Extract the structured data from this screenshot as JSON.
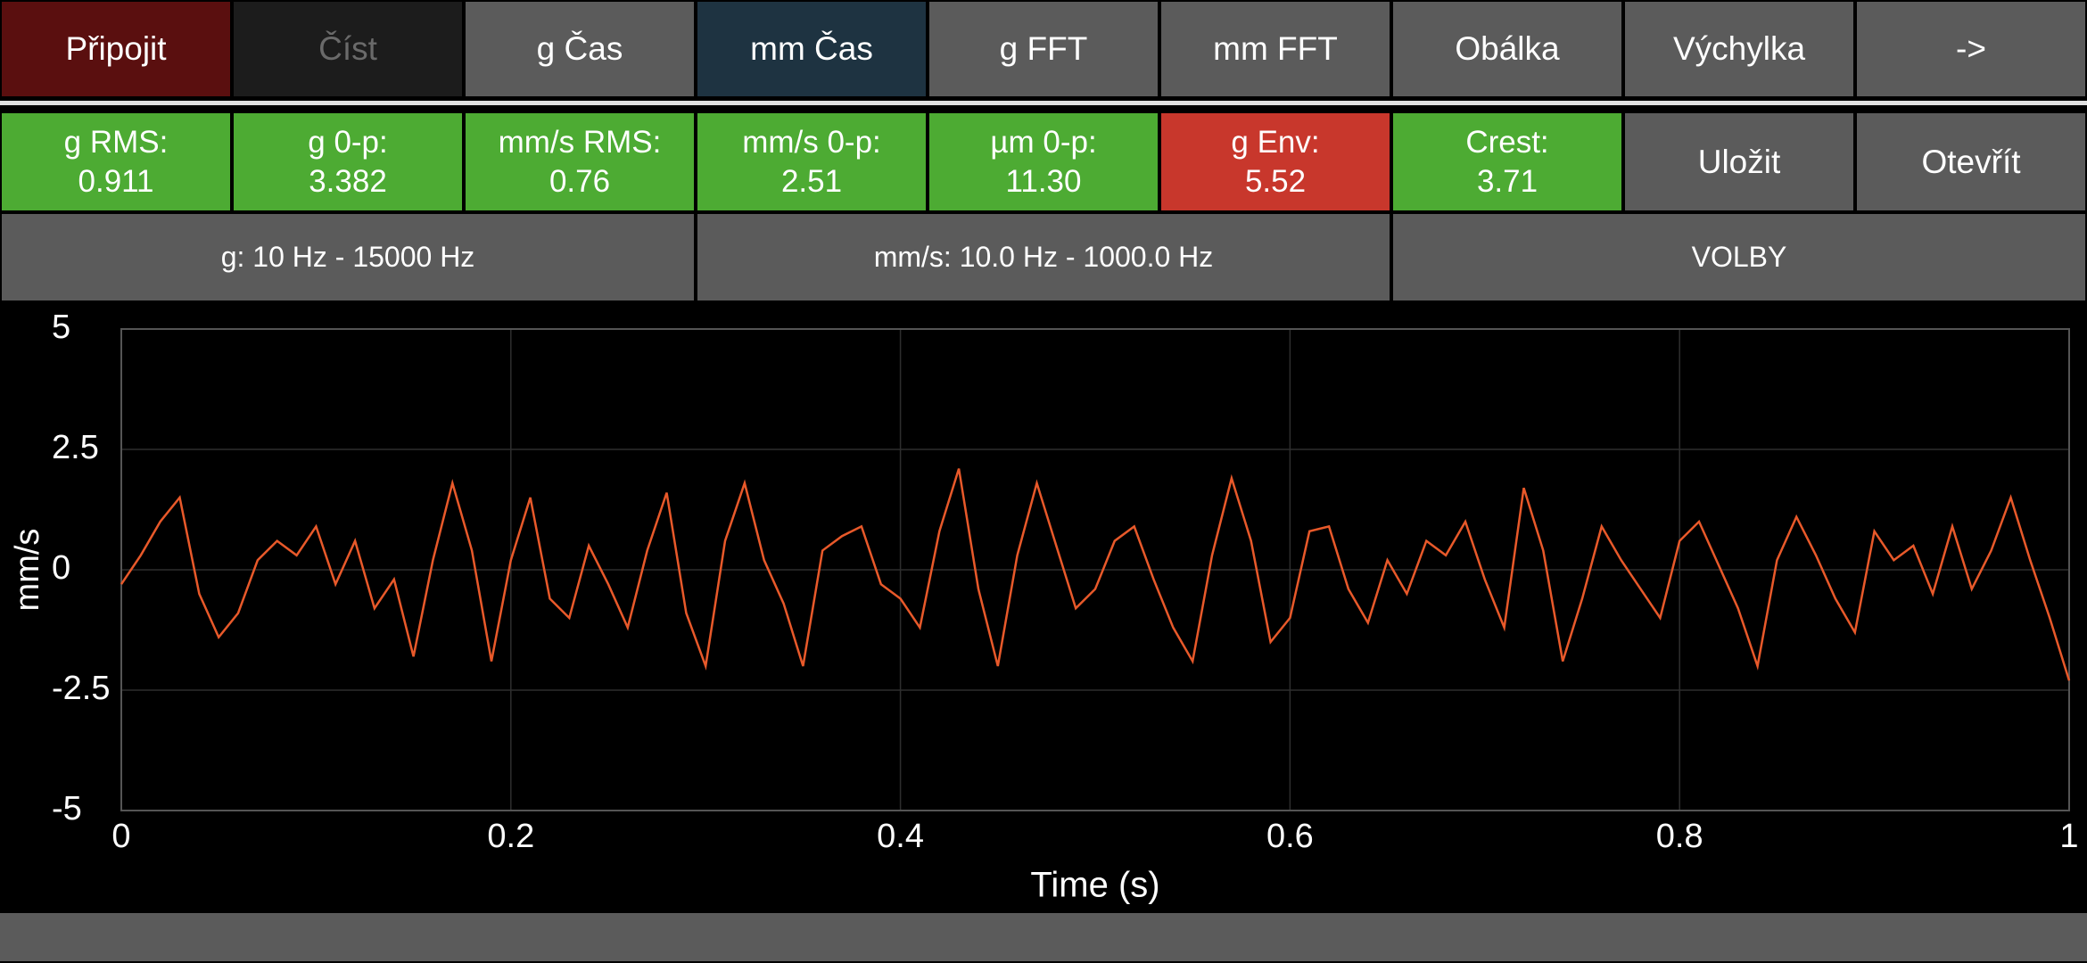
{
  "toolbar": [
    "Připojit",
    "Číst",
    "g Čas",
    "mm Čas",
    "g FFT",
    "mm FFT",
    "Obálka",
    "Výchylka",
    "->"
  ],
  "metrics": [
    {
      "label": "g RMS:",
      "value": "0.911"
    },
    {
      "label": "g 0-p:",
      "value": "3.382"
    },
    {
      "label": "mm/s RMS:",
      "value": "0.76"
    },
    {
      "label": "mm/s 0-p:",
      "value": "2.51"
    },
    {
      "label": "µm 0-p:",
      "value": "11.30"
    },
    {
      "label": "g Env:",
      "value": "5.52"
    },
    {
      "label": "Crest:",
      "value": "3.71"
    }
  ],
  "actions": [
    "Uložit",
    "Otevřít"
  ],
  "ranges": [
    "g: 10 Hz - 15000 Hz",
    "mm/s: 10.0 Hz - 1000.0 Hz",
    "VOLBY"
  ],
  "chart_data": {
    "type": "line",
    "x_label": "Time (s)",
    "y_label": "mm/s",
    "color": "#e8592a",
    "grid": true,
    "xlim": [
      0,
      1
    ],
    "ylim": [
      -5,
      5
    ],
    "xticks": [
      0,
      0.2,
      0.4,
      0.6,
      0.8,
      1
    ],
    "yticks": [
      5,
      2.5,
      0,
      -2.5,
      -5
    ],
    "x": [
      0,
      0.01,
      0.02,
      0.03,
      0.04,
      0.05,
      0.06,
      0.07,
      0.08,
      0.09,
      0.1,
      0.11,
      0.12,
      0.13,
      0.14,
      0.15,
      0.16,
      0.17,
      0.18,
      0.19,
      0.2,
      0.21,
      0.22,
      0.23,
      0.24,
      0.25,
      0.26,
      0.27,
      0.28,
      0.29,
      0.3,
      0.31,
      0.32,
      0.33,
      0.34,
      0.35,
      0.36,
      0.37,
      0.38,
      0.39,
      0.4,
      0.41,
      0.42,
      0.43,
      0.44,
      0.45,
      0.46,
      0.47,
      0.48,
      0.49,
      0.5,
      0.51,
      0.52,
      0.53,
      0.54,
      0.55,
      0.56,
      0.57,
      0.58,
      0.59,
      0.6,
      0.61,
      0.62,
      0.63,
      0.64,
      0.65,
      0.66,
      0.67,
      0.68,
      0.69,
      0.7,
      0.71,
      0.72,
      0.73,
      0.74,
      0.75,
      0.76,
      0.77,
      0.78,
      0.79,
      0.8,
      0.81,
      0.82,
      0.83,
      0.84,
      0.85,
      0.86,
      0.87,
      0.88,
      0.89,
      0.9,
      0.91,
      0.92,
      0.93,
      0.94,
      0.95,
      0.96,
      0.97,
      0.98,
      0.99,
      1
    ],
    "values": [
      -0.3,
      0.3,
      1.0,
      1.5,
      -0.5,
      -1.4,
      -0.9,
      0.2,
      0.6,
      0.3,
      0.9,
      -0.3,
      0.6,
      -0.8,
      -0.2,
      -1.8,
      0.2,
      1.8,
      0.4,
      -1.9,
      0.2,
      1.5,
      -0.6,
      -1.0,
      0.5,
      -0.3,
      -1.2,
      0.4,
      1.6,
      -0.9,
      -2.0,
      0.6,
      1.8,
      0.2,
      -0.7,
      -2.0,
      0.4,
      0.7,
      0.9,
      -0.3,
      -0.6,
      -1.2,
      0.8,
      2.1,
      -0.4,
      -2.0,
      0.3,
      1.8,
      0.5,
      -0.8,
      -0.4,
      0.6,
      0.9,
      -0.2,
      -1.2,
      -1.9,
      0.3,
      1.9,
      0.6,
      -1.5,
      -1.0,
      0.8,
      0.9,
      -0.4,
      -1.1,
      0.2,
      -0.5,
      0.6,
      0.3,
      1.0,
      -0.2,
      -1.2,
      1.7,
      0.4,
      -1.9,
      -0.6,
      0.9,
      0.2,
      -0.4,
      -1.0,
      0.6,
      1.0,
      0.1,
      -0.8,
      -2.0,
      0.2,
      1.1,
      0.3,
      -0.6,
      -1.3,
      0.8,
      0.2,
      0.5,
      -0.5,
      0.9,
      -0.4,
      0.4,
      1.5,
      0.2,
      -1.0,
      -2.3
    ]
  }
}
